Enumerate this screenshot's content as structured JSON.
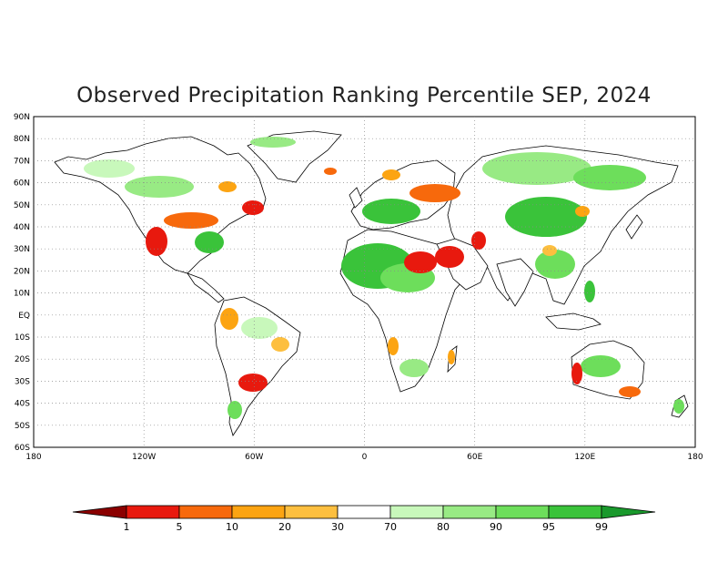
{
  "title": "Observed Precipitation Ranking Percentile SEP, 2024",
  "lat_labels": [
    "90N",
    "80N",
    "70N",
    "60N",
    "50N",
    "40N",
    "30N",
    "20N",
    "10N",
    "EQ",
    "10S",
    "20S",
    "30S",
    "40S",
    "50S",
    "60S"
  ],
  "lon_labels": [
    "180",
    "120W",
    "60W",
    "0",
    "60E",
    "120E",
    "180"
  ],
  "legend": {
    "ticks": [
      "1",
      "5",
      "10",
      "20",
      "30",
      "70",
      "80",
      "90",
      "95",
      "99"
    ],
    "colors": [
      "#8b0000",
      "#e8190e",
      "#f7690c",
      "#fca412",
      "#fdbf3f",
      "#ffffff",
      "#c8f8bb",
      "#98ea84",
      "#6dde5b",
      "#3ac33a",
      "#19992c"
    ]
  },
  "colors": {
    "land": "#ffffff",
    "coast": "#000000",
    "grid": "#8a8a8a"
  }
}
